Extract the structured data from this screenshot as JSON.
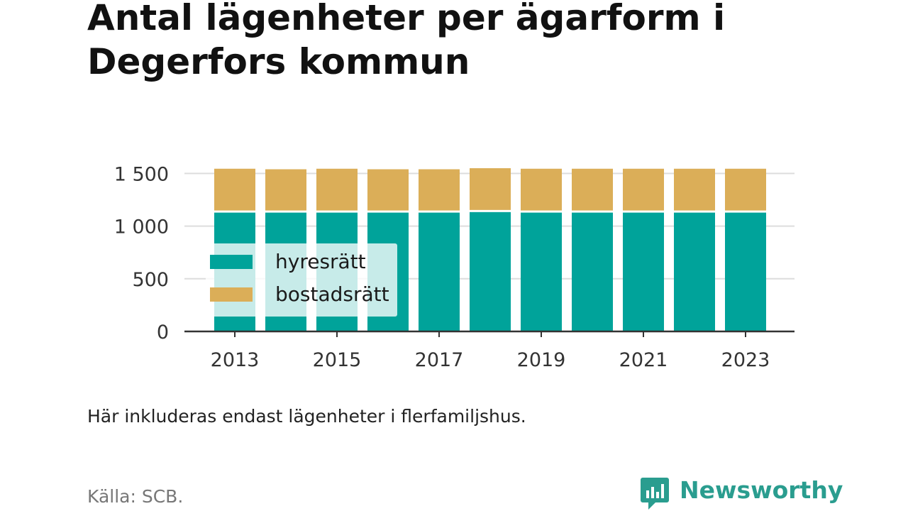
{
  "title": "Antal lägenheter per ägarform i Degerfors kommun",
  "note": "Här inkluderas endast lägenheter i flerfamiljshus.",
  "source": "Källa: SCB.",
  "brand": {
    "name": "Newsworthy",
    "icon": "newsworthy-logo-icon",
    "color": "#2a9d8f"
  },
  "chart_data": {
    "type": "bar",
    "stacked": true,
    "categories": [
      "2013",
      "2014",
      "2015",
      "2016",
      "2017",
      "2018",
      "2019",
      "2020",
      "2021",
      "2022",
      "2023"
    ],
    "series": [
      {
        "name": "hyresrätt",
        "color": "#00a39a",
        "values": [
          1135,
          1135,
          1135,
          1135,
          1135,
          1140,
          1135,
          1135,
          1135,
          1135,
          1135
        ]
      },
      {
        "name": "bostadsrätt",
        "color": "#dbae58",
        "values": [
          410,
          405,
          410,
          405,
          405,
          410,
          410,
          410,
          410,
          410,
          410
        ]
      }
    ],
    "ylim": [
      0,
      1550
    ],
    "yticks": [
      0,
      500,
      1000,
      1500
    ],
    "ytick_labels": [
      "0",
      "500",
      "1 000",
      "1 500"
    ],
    "xtick_labels": [
      "2013",
      "2015",
      "2017",
      "2019",
      "2021",
      "2023"
    ],
    "grid": true,
    "legend_position": "bottom-left"
  }
}
